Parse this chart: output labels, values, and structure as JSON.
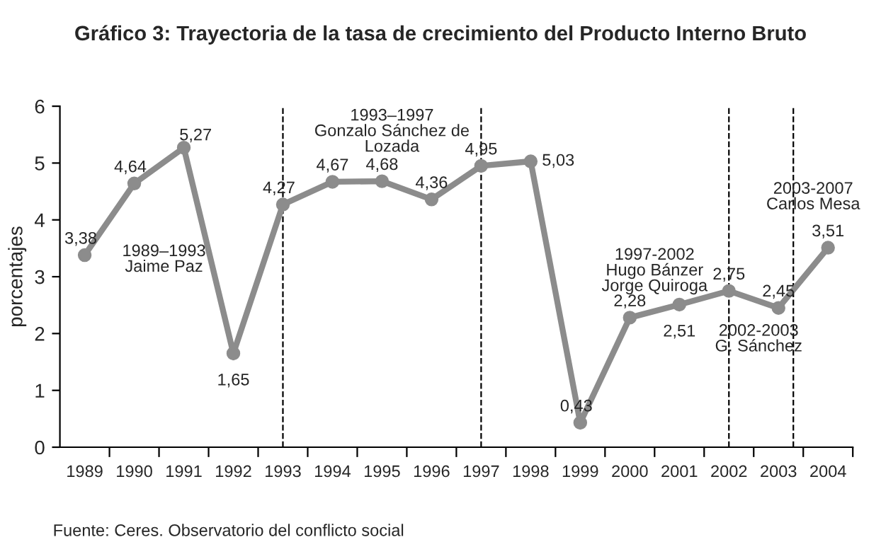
{
  "chart_data": {
    "type": "line",
    "title": "Gráfico 3: Trayectoria de la tasa de crecimiento del Producto Interno Bruto",
    "ylabel": "porcentajes",
    "x": [
      1989,
      1990,
      1991,
      1992,
      1993,
      1994,
      1995,
      1996,
      1997,
      1998,
      1999,
      2000,
      2001,
      2002,
      2003,
      2004
    ],
    "series": [
      {
        "color": "#8c8c8c",
        "values": [
          3.38,
          4.64,
          5.27,
          1.65,
          4.27,
          4.67,
          4.68,
          4.36,
          4.95,
          5.03,
          0.43,
          2.28,
          2.51,
          2.75,
          2.45,
          3.51
        ],
        "value_labels": [
          "3,38",
          "4,64",
          "5,27",
          "1,65",
          "4,27",
          "4,67",
          "4,68",
          "4,36",
          "4,95",
          "5,03",
          "0,43",
          "2,28",
          "2,51",
          "2,75",
          "2,45",
          "3,51"
        ]
      }
    ],
    "xlim": [
      1988.5,
      2004.5
    ],
    "xticks": [
      1989,
      1990,
      1991,
      1992,
      1993,
      1994,
      1995,
      1996,
      1997,
      1998,
      1999,
      2000,
      2001,
      2002,
      2003,
      2004,
      {
        "value": 1989.5,
        "label": null
      },
      {
        "value": 1990.5,
        "label": null
      },
      {
        "value": 1991.5,
        "label": null
      },
      {
        "value": 1992.5,
        "label": null
      },
      {
        "value": 1993.5,
        "label": null
      },
      {
        "value": 1994.5,
        "label": null
      },
      {
        "value": 1995.5,
        "label": null
      },
      {
        "value": 1996.5,
        "label": null
      },
      {
        "value": 1997.5,
        "label": null
      },
      {
        "value": 1998.5,
        "label": null
      },
      {
        "value": 1999.5,
        "label": null
      },
      {
        "value": 2000.5,
        "label": null
      },
      {
        "value": 2001.5,
        "label": null
      },
      {
        "value": 2002.5,
        "label": null
      },
      {
        "value": 2003.5,
        "label": null
      },
      {
        "value": 2004.5,
        "label": null
      }
    ],
    "ylim": [
      0,
      6
    ],
    "yticks": [
      0,
      1,
      2,
      3,
      4,
      5,
      6
    ],
    "ref_lines": [
      {
        "axis": "x",
        "value": 1993,
        "line_style": "dashed",
        "color": "#000000"
      },
      {
        "axis": "x",
        "value": 1997,
        "line_style": "dashed",
        "color": "#000000"
      },
      {
        "axis": "x",
        "value": 2002,
        "line_style": "dashed",
        "color": "#000000"
      },
      {
        "axis": "x",
        "value": 2003.3,
        "line_style": "dashed",
        "color": "#000000"
      }
    ],
    "annotations": [
      "1989–1993\nJaime Paz",
      "1993–1997\nGonzalo Sánchez de\nLozada",
      "1997-2002\nHugo Bánzer\nJorge Quiroga",
      "2002-2003\nG. Sánchez",
      "2003-2007\nCarlos Mesa",
      "Fuente: Ceres. Observatorio del conflicto social"
    ],
    "marker": "circle",
    "line_style": "solid",
    "grid": false,
    "legend": false
  }
}
